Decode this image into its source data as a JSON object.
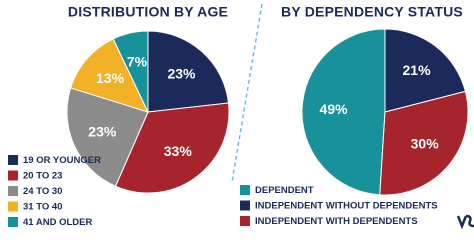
{
  "chart_data": [
    {
      "type": "pie",
      "title": "DISTRIBUTION BY AGE",
      "categories": [
        "19 OR YOUNGER",
        "20 TO 23",
        "24 TO 30",
        "31 TO 40",
        "41 AND OLDER"
      ],
      "values": [
        23,
        33,
        23,
        13,
        7
      ],
      "value_labels": [
        "23%",
        "33%",
        "23%",
        "13%",
        "7%"
      ],
      "colors": [
        "#1b2a5a",
        "#a6252c",
        "#8c8c8c",
        "#f2b126",
        "#17929a"
      ],
      "legend": "lower left"
    },
    {
      "type": "pie",
      "title": "BY DEPENDENCY STATUS",
      "categories": [
        "DEPENDENT",
        "INDEPENDENT WITHOUT DEPENDENTS",
        "INDEPENDENT WITH DEPENDENTS"
      ],
      "values": [
        49,
        21,
        30
      ],
      "value_labels": [
        "49%",
        "21%",
        "30%"
      ],
      "colors": [
        "#17929a",
        "#1b2a5a",
        "#a6252c"
      ],
      "legend": "lower left"
    }
  ]
}
